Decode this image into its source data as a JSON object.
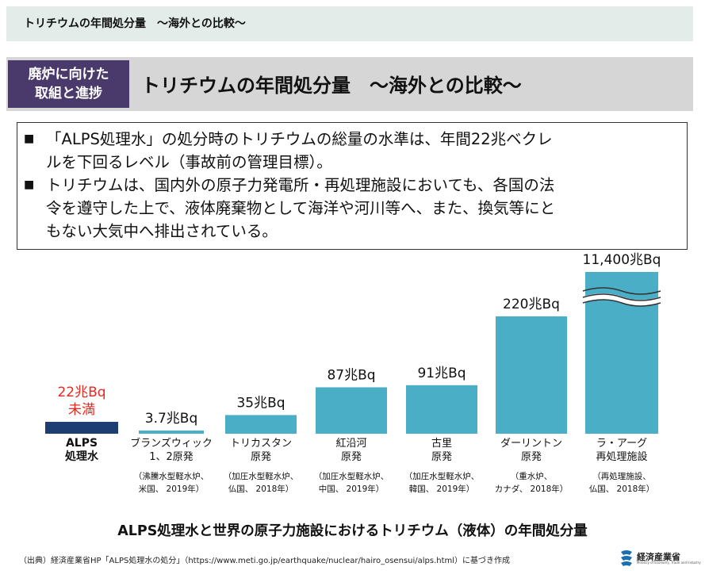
{
  "page": {
    "top_title": "トリチウムの年間処分量　～海外との比較～",
    "header_tag_line1": "廃炉に向けた",
    "header_tag_line2": "取組と進捗",
    "header_title": "トリチウムの年間処分量　～海外との比較～"
  },
  "info": {
    "bullet_mark": "■",
    "b1_line1": "「ALPS処理水」の処分時のトリチウムの総量の水準は、年間22兆ベクレ",
    "b1_line2": "ルを下回るレベル（事故前の管理目標）。",
    "b2_line1": "トリチウムは、国内外の原子力発電所・再処理施設においても、各国の法",
    "b2_line2": "令を遵守した上で、液体廃棄物として海洋や河川等へ、また、換気等にと",
    "b2_line3": "もない大気中へ排出されている。"
  },
  "chart_data": {
    "type": "bar",
    "title": "ALPS処理水と世界の原子力施設におけるトリチウム（液体）の年間処分量",
    "unit": "兆Bq",
    "axis_break": true,
    "bar_color": "#4aaec6",
    "highlight_color": "#1e3d73",
    "highlight_label_color": "#e8281e",
    "bars": [
      {
        "name_lines": [
          "ALPS",
          "処理水"
        ],
        "value": 22,
        "label_lines": [
          "22兆Bq",
          "未満"
        ],
        "detail_lines": [],
        "highlight": true
      },
      {
        "name_lines": [
          "ブランズウィック",
          "1、2原発"
        ],
        "value": 3.7,
        "label_lines": [
          "3.7兆Bq"
        ],
        "detail_lines": [
          "（沸騰水型軽水炉、",
          "米国、 2019年）"
        ],
        "highlight": false
      },
      {
        "name_lines": [
          "トリカスタン",
          "原発"
        ],
        "value": 35,
        "label_lines": [
          "35兆Bq"
        ],
        "detail_lines": [
          "（加圧水型軽水炉、",
          "仏国、 2018年）"
        ],
        "highlight": false
      },
      {
        "name_lines": [
          "紅沿河",
          "原発"
        ],
        "value": 87,
        "label_lines": [
          "87兆Bq"
        ],
        "detail_lines": [
          "（加圧水型軽水炉、",
          "中国、 2019年）"
        ],
        "highlight": false
      },
      {
        "name_lines": [
          "古里",
          "原発"
        ],
        "value": 91,
        "label_lines": [
          "91兆Bq"
        ],
        "detail_lines": [
          "（加圧水型軽水炉、",
          "韓国、 2019年）"
        ],
        "highlight": false
      },
      {
        "name_lines": [
          "ダーリントン",
          "原発"
        ],
        "value": 220,
        "label_lines": [
          "220兆Bq"
        ],
        "detail_lines": [
          "（重水炉、",
          "カナダ、 2018年）"
        ],
        "highlight": false
      },
      {
        "name_lines": [
          "ラ・アーグ",
          "再処理施設"
        ],
        "value": 11400,
        "label_lines": [
          "11,400兆Bq"
        ],
        "detail_lines": [
          "（再処理施設、",
          "仏国、 2018年）"
        ],
        "highlight": false
      }
    ]
  },
  "footer": {
    "source": "（出典）経済産業省HP「ALPS処理水の処分」（https://www.meti.go.jp/earthquake/nuclear/hairo_osensui/alps.html）に基づき作成",
    "logo_text": "経済産業省",
    "logo_sub": "Ministry of Economy, Trade and Industry"
  }
}
